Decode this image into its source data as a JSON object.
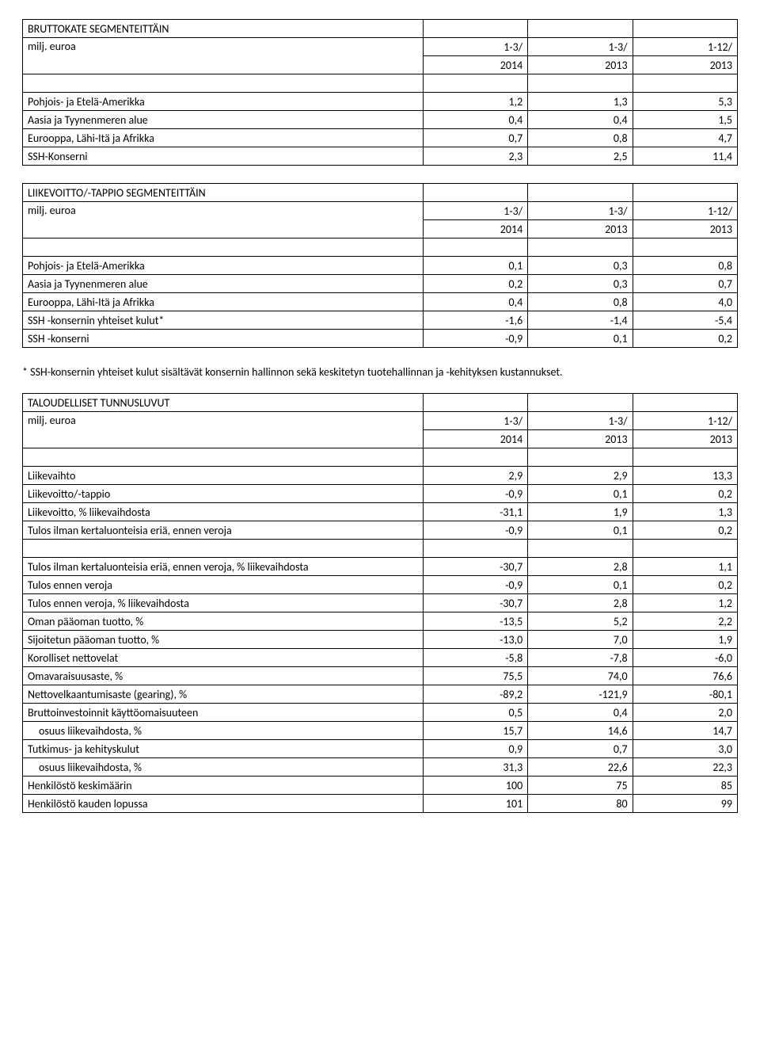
{
  "tables": [
    {
      "title": "BRUTTOKATE SEGMENTEITTÄIN",
      "subtitle": "milj. euroa",
      "period_cols": [
        [
          "1-3/",
          "2014"
        ],
        [
          "1-3/",
          "2013"
        ],
        [
          "1-12/",
          "2013"
        ]
      ],
      "rows": [
        {
          "label": "Pohjois- ja Etelä-Amerikka",
          "v": [
            "1,2",
            "1,3",
            "5,3"
          ]
        },
        {
          "label": "Aasia ja Tyynenmeren alue",
          "v": [
            "0,4",
            "0,4",
            "1,5"
          ]
        },
        {
          "label": "Eurooppa, Lähi-Itä ja Afrikka",
          "v": [
            "0,7",
            "0,8",
            "4,7"
          ]
        },
        {
          "label": "SSH-Konserni",
          "v": [
            "2,3",
            "2,5",
            "11,4"
          ]
        }
      ]
    },
    {
      "title": "LIIKEVOITTO/-TAPPIO SEGMENTEITTÄIN",
      "subtitle": "milj. euroa",
      "period_cols": [
        [
          "1-3/",
          "2014"
        ],
        [
          "1-3/",
          "2013"
        ],
        [
          "1-12/",
          "2013"
        ]
      ],
      "rows": [
        {
          "label": "Pohjois- ja Etelä-Amerikka",
          "v": [
            "0,1",
            "0,3",
            "0,8"
          ]
        },
        {
          "label": "Aasia ja Tyynenmeren alue",
          "v": [
            "0,2",
            "0,3",
            "0,7"
          ]
        },
        {
          "label": "Eurooppa, Lähi-Itä ja Afrikka",
          "v": [
            "0,4",
            "0,8",
            "4,0"
          ]
        },
        {
          "label": "SSH -konsernin yhteiset kulut*",
          "v": [
            "-1,6",
            "-1,4",
            "-5,4"
          ]
        },
        {
          "label": "SSH -konserni",
          "v": [
            "-0,9",
            "0,1",
            "0,2"
          ]
        }
      ]
    },
    {
      "title": "TALOUDELLISET TUNNUSLUVUT",
      "subtitle": "milj. euroa",
      "period_cols": [
        [
          "1-3/",
          "2014"
        ],
        [
          "1-3/",
          "2013"
        ],
        [
          "1-12/",
          "2013"
        ]
      ],
      "groups": [
        [
          {
            "label": "Liikevaihto",
            "v": [
              "2,9",
              "2,9",
              "13,3"
            ]
          },
          {
            "label": "Liikevoitto/-tappio",
            "v": [
              "-0,9",
              "0,1",
              "0,2"
            ]
          },
          {
            "label": "Liikevoitto, % liikevaihdosta",
            "v": [
              "-31,1",
              "1,9",
              "1,3"
            ]
          },
          {
            "label": "Tulos ilman kertaluonteisia eriä, ennen veroja",
            "v": [
              "-0,9",
              "0,1",
              "0,2"
            ]
          }
        ],
        [
          {
            "label": "Tulos ilman kertaluonteisia eriä, ennen veroja, % liikevaihdosta",
            "v": [
              "-30,7",
              "2,8",
              "1,1"
            ]
          },
          {
            "label": "Tulos ennen veroja",
            "v": [
              "-0,9",
              "0,1",
              "0,2"
            ]
          },
          {
            "label": "Tulos ennen veroja, % liikevaihdosta",
            "v": [
              "-30,7",
              "2,8",
              "1,2"
            ]
          },
          {
            "label": "Oman pääoman tuotto, %",
            "v": [
              "-13,5",
              "5,2",
              "2,2"
            ]
          },
          {
            "label": "Sijoitetun pääoman tuotto, %",
            "v": [
              "-13,0",
              "7,0",
              "1,9"
            ]
          },
          {
            "label": "Korolliset nettovelat",
            "v": [
              "-5,8",
              "-7,8",
              "-6,0"
            ]
          },
          {
            "label": "Omavaraisuusaste, %",
            "v": [
              "75,5",
              "74,0",
              "76,6"
            ]
          },
          {
            "label": "Nettovelkaantumisaste (gearing), %",
            "v": [
              "-89,2",
              "-121,9",
              "-80,1"
            ]
          },
          {
            "label": "Bruttoinvestoinnit käyttöomaisuuteen",
            "v": [
              "0,5",
              "0,4",
              "2,0"
            ]
          },
          {
            "label": "  osuus liikevaihdosta, %",
            "v": [
              "15,7",
              "14,6",
              "14,7"
            ]
          },
          {
            "label": "Tutkimus- ja kehityskulut",
            "v": [
              "0,9",
              "0,7",
              "3,0"
            ]
          },
          {
            "label": "  osuus liikevaihdosta, %",
            "v": [
              "31,3",
              "22,6",
              "22,3"
            ]
          },
          {
            "label": "Henkilöstö keskimäärin",
            "v": [
              "100",
              "75",
              "85"
            ]
          },
          {
            "label": "Henkilöstö kauden lopussa",
            "v": [
              "101",
              "80",
              "99"
            ]
          }
        ]
      ]
    }
  ],
  "footnote": "* SSH-konsernin yhteiset kulut sisältävät konsernin hallinnon sekä keskitetyn tuotehallinnan ja -kehityksen kustannukset."
}
